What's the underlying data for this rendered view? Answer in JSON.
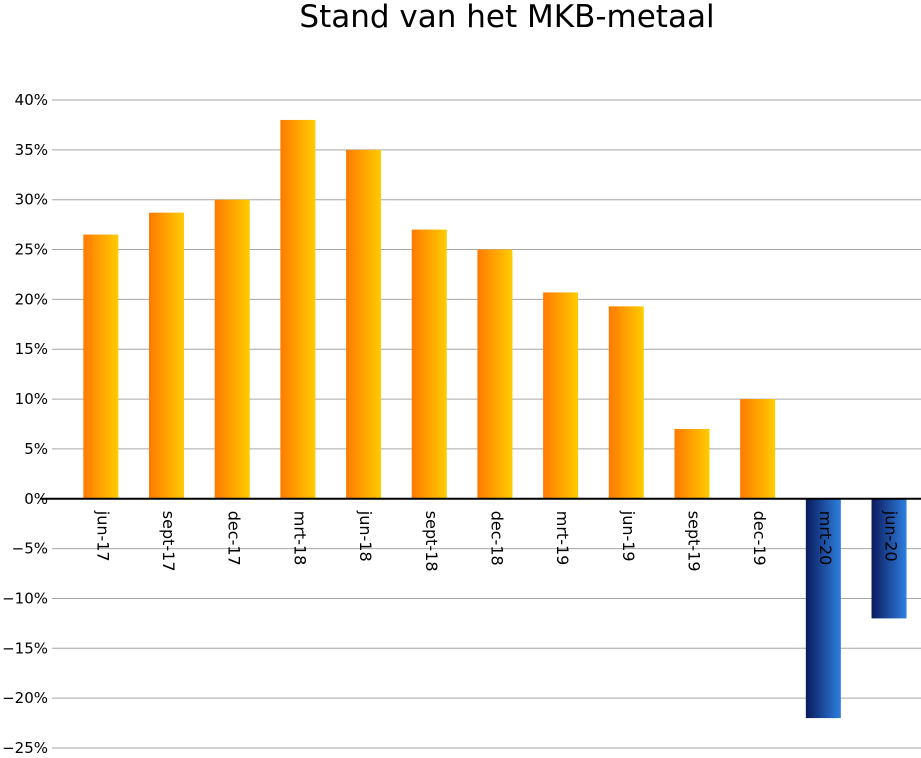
{
  "chart_data": {
    "type": "bar",
    "title": "Stand van het MKB-metaal",
    "xlabel": "",
    "ylabel": "",
    "ylim": [
      -25,
      40
    ],
    "yticks": [
      40,
      35,
      30,
      25,
      20,
      15,
      10,
      5,
      0,
      -5,
      -10,
      -15,
      -20,
      -25
    ],
    "ytick_labels": [
      "40%",
      "35%",
      "30%",
      "25%",
      "20%",
      "15%",
      "10%",
      "5%",
      "0%",
      "−5%",
      "−10%",
      "−15%",
      "−20%",
      "−25%"
    ],
    "grid": true,
    "categories": [
      "jun-17",
      "sept-17",
      "dec-17",
      "mrt-18",
      "jun-18",
      "sept-18",
      "dec-18",
      "mrt-19",
      "jun-19",
      "sept-19",
      "dec-19",
      "mrt-20",
      "jun-20"
    ],
    "values": [
      26.5,
      28.7,
      30,
      38,
      35,
      27,
      25,
      20.7,
      19.3,
      7,
      10,
      -22,
      -12
    ],
    "colors": {
      "positive_start": "#ff7a00",
      "positive_end": "#ffcc00",
      "negative_start": "#0a1a5c",
      "negative_end": "#2f7fe0"
    }
  }
}
